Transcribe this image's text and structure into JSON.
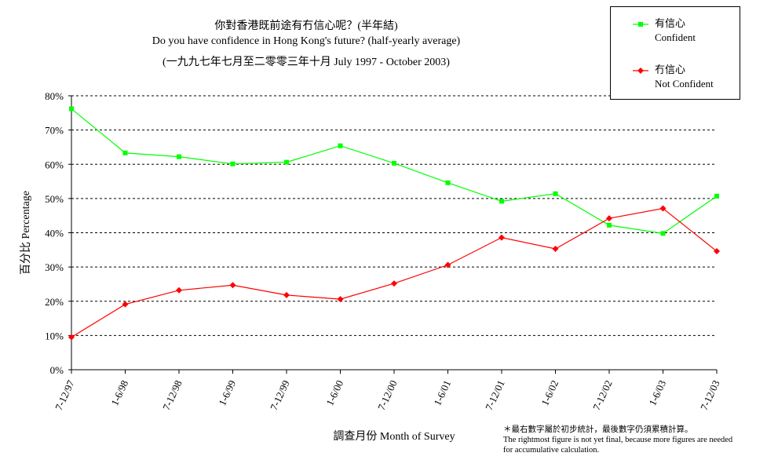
{
  "chart_data": {
    "type": "line",
    "title": "你對香港既前途有冇信心呢？(半年結)",
    "subtitle": "Do you have confidence in Hong Kong's future? (half-yearly average)",
    "subtitle2": "(一九九七年七月至二零零三年十月 July 1997 - October 2003)",
    "xlabel": "調查月份 Month of Survey",
    "ylabel": "百分比 Percentage",
    "ylim": [
      0,
      80
    ],
    "y_ticks": [
      "0%",
      "10%",
      "20%",
      "30%",
      "40%",
      "50%",
      "60%",
      "70%",
      "80%"
    ],
    "grid": true,
    "legend_position": "top-right",
    "categories": [
      "7-12/97",
      "1-6/98",
      "7-12/98",
      "1-6/99",
      "7-12/99",
      "1-6/00",
      "7-12/00",
      "1-6/01",
      "7-12/01",
      "1-6/02",
      "7-12/02",
      "1-6/03",
      "7-12/03"
    ],
    "series": [
      {
        "name": "有信心",
        "name_en": "Confident",
        "color": "#00ff00",
        "marker": "square",
        "values": [
          76.2,
          63.3,
          62.2,
          60.1,
          60.6,
          65.4,
          60.3,
          54.6,
          49.2,
          51.4,
          42.2,
          39.8,
          50.7
        ]
      },
      {
        "name": "冇信心",
        "name_en": "Not Confident",
        "color": "#ff0000",
        "marker": "diamond",
        "values": [
          9.5,
          19.1,
          23.2,
          24.7,
          21.8,
          20.6,
          25.2,
          30.6,
          38.6,
          35.3,
          44.2,
          47.1,
          34.6
        ]
      }
    ],
    "note": "＊最右數字屬於初步統計，最後數字仍須累積計算。",
    "note_en": "The rightmost figure is not yet final, because more figures are needed for accumulative calculation."
  }
}
